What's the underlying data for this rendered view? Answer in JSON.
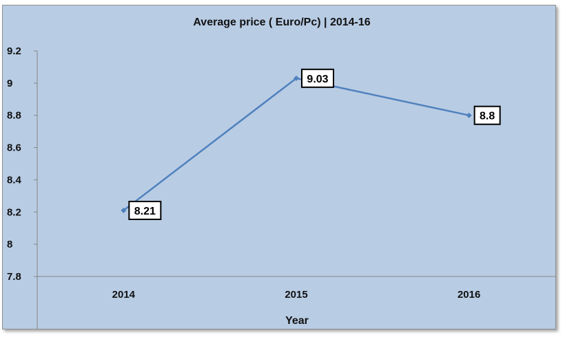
{
  "chart_data": {
    "type": "line",
    "title": "Average price ( Euro/Pc) | 2014-16",
    "xlabel": "Year",
    "ylabel": "",
    "categories": [
      "2014",
      "2015",
      "2016"
    ],
    "series": [
      {
        "values": [
          8.21,
          9.03,
          8.8
        ],
        "color": "#4f81bd"
      }
    ],
    "data_labels": [
      "8.21",
      "9.03",
      "8.8"
    ],
    "ylim": [
      7.8,
      9.2
    ],
    "yticks": [
      7.8,
      8,
      8.2,
      8.4,
      8.6,
      8.8,
      9,
      9.2
    ],
    "ytick_labels": [
      "7.8",
      "8",
      "8.2",
      "8.4",
      "8.6",
      "8.8",
      "9",
      "9.2"
    ],
    "grid": false,
    "legend": "none"
  }
}
